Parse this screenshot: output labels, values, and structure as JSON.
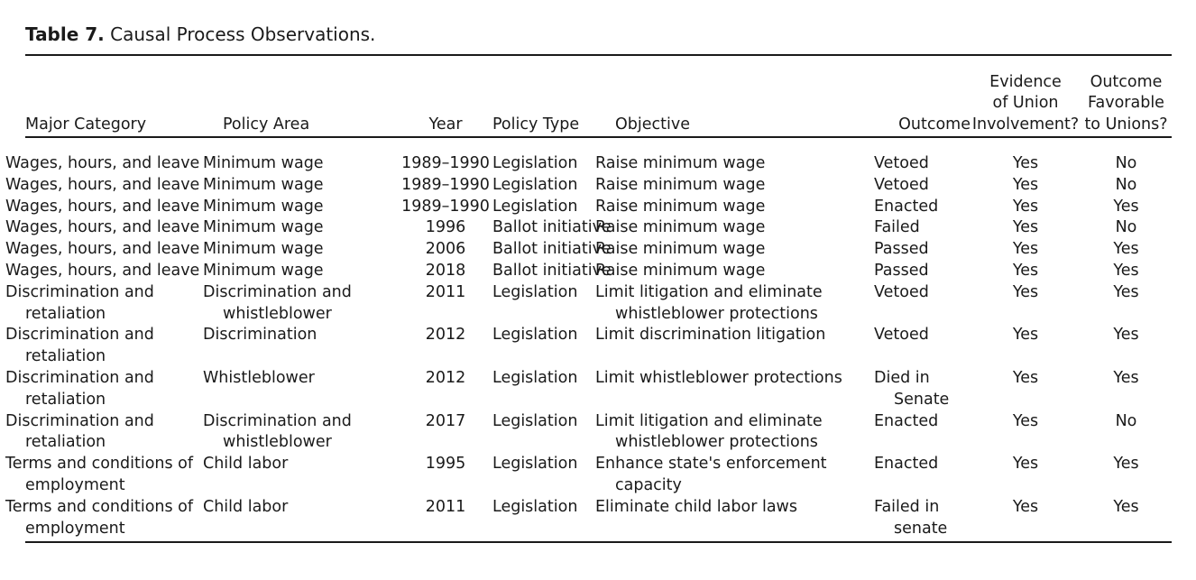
{
  "caption": {
    "label": "Table 7.",
    "title": "Causal Process Observations."
  },
  "headers": {
    "major_category": "Major Category",
    "policy_area": "Policy Area",
    "year": "Year",
    "policy_type": "Policy Type",
    "objective": "Objective",
    "outcome": "Outcome",
    "evidence_line1": "Evidence",
    "evidence_line2": "of Union",
    "evidence_line3": "Involvement?",
    "favorable_line1": "Outcome",
    "favorable_line2": "Favorable",
    "favorable_line3": "to Unions?"
  },
  "rows": [
    {
      "category": "Wages, hours, and leave",
      "area": "Minimum wage",
      "year": "1989–1990",
      "type": "Legislation",
      "objective": "Raise minimum wage",
      "outcome": "Vetoed",
      "evidence": "Yes",
      "favorable": "No"
    },
    {
      "category": "Wages, hours, and leave",
      "area": "Minimum wage",
      "year": "1989–1990",
      "type": "Legislation",
      "objective": "Raise minimum wage",
      "outcome": "Vetoed",
      "evidence": "Yes",
      "favorable": "No"
    },
    {
      "category": "Wages, hours, and leave",
      "area": "Minimum wage",
      "year": "1989–1990",
      "type": "Legislation",
      "objective": "Raise minimum wage",
      "outcome": "Enacted",
      "evidence": "Yes",
      "favorable": "Yes"
    },
    {
      "category": "Wages, hours, and leave",
      "area": "Minimum wage",
      "year": "1996",
      "type": "Ballot initiative",
      "objective": "Raise minimum wage",
      "outcome": "Failed",
      "evidence": "Yes",
      "favorable": "No"
    },
    {
      "category": "Wages, hours, and leave",
      "area": "Minimum wage",
      "year": "2006",
      "type": "Ballot initiative",
      "objective": "Raise minimum wage",
      "outcome": "Passed",
      "evidence": "Yes",
      "favorable": "Yes"
    },
    {
      "category": "Wages, hours, and leave",
      "area": "Minimum wage",
      "year": "2018",
      "type": "Ballot initiative",
      "objective": "Raise minimum wage",
      "outcome": "Passed",
      "evidence": "Yes",
      "favorable": "Yes"
    },
    {
      "category": "Discrimination and retaliation",
      "area": "Discrimination and whistleblower",
      "year": "2011",
      "type": "Legislation",
      "objective": "Limit litigation and eliminate whistleblower protections",
      "outcome": "Vetoed",
      "evidence": "Yes",
      "favorable": "Yes"
    },
    {
      "category": "Discrimination and retaliation",
      "area": "Discrimination",
      "year": "2012",
      "type": "Legislation",
      "objective": "Limit discrimination litigation",
      "outcome": "Vetoed",
      "evidence": "Yes",
      "favorable": "Yes"
    },
    {
      "category": "Discrimination and retaliation",
      "area": "Whistleblower",
      "year": "2012",
      "type": "Legislation",
      "objective": "Limit whistleblower protections",
      "outcome": "Died in Senate",
      "evidence": "Yes",
      "favorable": "Yes"
    },
    {
      "category": "Discrimination and retaliation",
      "area": "Discrimination and whistleblower",
      "year": "2017",
      "type": "Legislation",
      "objective": "Limit litigation and eliminate whistleblower protections",
      "outcome": "Enacted",
      "evidence": "Yes",
      "favorable": "No"
    },
    {
      "category": "Terms and conditions of employment",
      "area": "Child labor",
      "year": "1995",
      "type": "Legislation",
      "objective": "Enhance state's enforcement capacity",
      "outcome": "Enacted",
      "evidence": "Yes",
      "favorable": "Yes"
    },
    {
      "category": "Terms and conditions of employment",
      "area": "Child labor",
      "year": "2011",
      "type": "Legislation",
      "objective": "Eliminate child labor laws",
      "outcome": "Failed in senate",
      "evidence": "Yes",
      "favorable": "Yes"
    }
  ]
}
